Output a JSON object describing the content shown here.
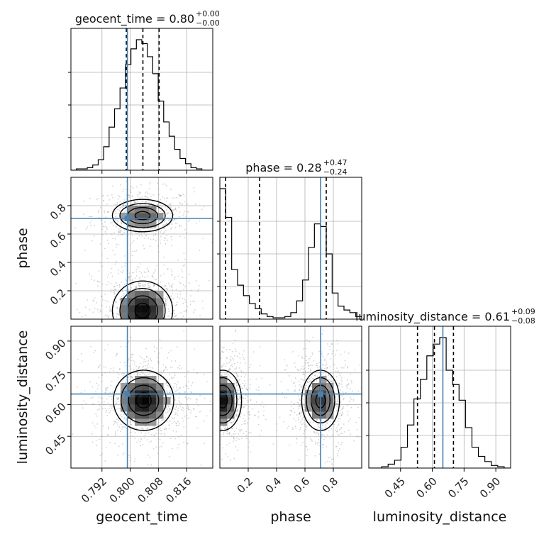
{
  "chart_data": {
    "type": "corner",
    "parameters": [
      "geocent_time",
      "phase",
      "luminosity_distance"
    ],
    "titles": [
      {
        "param": "geocent_time",
        "median": "0.80",
        "plus": "+0.00",
        "minus": "−0.00"
      },
      {
        "param": "phase",
        "median": "0.28",
        "plus": "+0.47",
        "minus": "−0.24"
      },
      {
        "param": "luminosity_distance",
        "median": "0.61",
        "plus": "+0.09",
        "minus": "−0.08"
      }
    ],
    "axes": {
      "geocent_time": {
        "range": [
          0.7832,
          0.8234
        ],
        "ticks": [
          0.792,
          0.8,
          0.808,
          0.816
        ],
        "tick_labels": [
          "0.792",
          "0.800",
          "0.808",
          "0.816"
        ],
        "quantiles": [
          0.7989,
          0.8036,
          0.8082
        ],
        "truth": 0.7992
      },
      "phase": {
        "range": [
          0.0,
          1.0
        ],
        "ticks": [
          0.2,
          0.4,
          0.6,
          0.8
        ],
        "tick_labels": [
          "0.2",
          "0.4",
          "0.6",
          "0.8"
        ],
        "quantiles": [
          0.04,
          0.28,
          0.75
        ],
        "truth": 0.71
      },
      "luminosity_distance": {
        "range": [
          0.3,
          0.97
        ],
        "ticks": [
          0.45,
          0.6,
          0.75,
          0.9
        ],
        "tick_labels": [
          "0.45",
          "0.60",
          "0.75",
          "0.90"
        ],
        "quantiles": [
          0.53,
          0.61,
          0.7
        ],
        "truth": 0.65
      }
    },
    "histograms": {
      "geocent_time": [
        0,
        0.01,
        0.01,
        0.02,
        0.04,
        0.08,
        0.18,
        0.33,
        0.47,
        0.63,
        0.81,
        0.93,
        1.0,
        0.97,
        0.87,
        0.74,
        0.53,
        0.37,
        0.26,
        0.16,
        0.09,
        0.05,
        0.02,
        0.01,
        0.0,
        0.0
      ],
      "phase": [
        1.0,
        0.78,
        0.38,
        0.26,
        0.18,
        0.12,
        0.08,
        0.04,
        0.02,
        0.01,
        0.01,
        0.02,
        0.05,
        0.14,
        0.3,
        0.55,
        0.73,
        0.71,
        0.5,
        0.2,
        0.1,
        0.07,
        0.05,
        0.02
      ],
      "luminosity_distance": [
        0,
        0.0,
        0.01,
        0.03,
        0.06,
        0.16,
        0.33,
        0.53,
        0.68,
        0.86,
        0.95,
        1.0,
        0.75,
        0.64,
        0.52,
        0.31,
        0.16,
        0.09,
        0.05,
        0.02,
        0.01,
        0.0
      ]
    },
    "density_modes": [
      {
        "x": "geocent_time",
        "y": "phase",
        "centers": [
          [
            0.8035,
            0.73,
            0.0045,
            0.06,
            0.65
          ],
          [
            0.8035,
            0.06,
            0.0045,
            0.11,
            1.0
          ]
        ]
      },
      {
        "x": "geocent_time",
        "y": "luminosity_distance",
        "centers": [
          [
            0.8038,
            0.62,
            0.0045,
            0.075,
            1.0
          ]
        ]
      },
      {
        "x": "phase",
        "y": "luminosity_distance",
        "centers": [
          [
            0.02,
            0.62,
            0.07,
            0.075,
            0.95
          ],
          [
            0.71,
            0.62,
            0.07,
            0.075,
            0.8
          ]
        ]
      }
    ],
    "colors": {
      "truth": "#4682b4",
      "hist": "#000000",
      "grid": "#b0b0b0",
      "scatter": "#808080"
    }
  }
}
